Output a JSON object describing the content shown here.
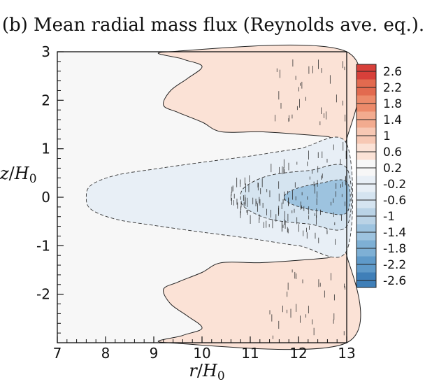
{
  "chart_data": {
    "type": "heatmap",
    "title": "(b) Mean radial mass flux (Reynolds ave. eq.).",
    "xlabel": {
      "var": "r",
      "slash": "/",
      "base": "H",
      "sub": "0"
    },
    "ylabel": {
      "var": "z",
      "slash": "/",
      "base": "H",
      "sub": "0"
    },
    "xlim": [
      7,
      13
    ],
    "ylim": [
      -3,
      3
    ],
    "x_ticks": [
      7,
      8,
      9,
      10,
      11,
      12,
      13
    ],
    "x_tick_labels": [
      "7",
      "8",
      "9",
      "10",
      "11",
      "12",
      "13"
    ],
    "y_ticks": [
      3,
      2,
      1,
      0,
      -1,
      -2
    ],
    "y_tick_labels": [
      "3",
      "2",
      "1",
      "0",
      "-1",
      "-2"
    ],
    "colorbar": {
      "levels": [
        2.6,
        2.2,
        1.8,
        1.4,
        1,
        0.6,
        0.2,
        -0.2,
        -0.6,
        -1,
        -1.4,
        -1.8,
        -2.2,
        -2.6
      ],
      "labels": [
        "2.6",
        "2.2",
        "1.8",
        "1.4",
        "1",
        "0.6",
        "0.2",
        "-0.2",
        "-0.6",
        "-1",
        "-1.4",
        "-1.8",
        "-2.2",
        "-2.6"
      ],
      "colors": [
        "#d7403a",
        "#e26a4f",
        "#ec8a6a",
        "#f2ab8f",
        "#f7c8b4",
        "#fbe2d6",
        "#f7f7f7",
        "#e8eff6",
        "#d5e4f0",
        "#bad3e6",
        "#9dc3df",
        "#7eb0d5",
        "#5f9ac9",
        "#3f7fb8"
      ]
    },
    "regions": [
      {
        "name": "background-near-zero",
        "level": 0.0,
        "color": "#f7f7f7"
      },
      {
        "name": "upper-positive-band",
        "level": 0.6,
        "color": "#fbe2d6",
        "z_range": [
          1.3,
          3.0
        ],
        "r_range": [
          9.2,
          13
        ]
      },
      {
        "name": "lower-positive-band",
        "level": 0.6,
        "color": "#fbe2d6",
        "z_range": [
          -3.0,
          -1.3
        ],
        "r_range": [
          9.2,
          13
        ]
      },
      {
        "name": "central-negative-wedge",
        "level": -0.4,
        "color": "#e8eff6",
        "z_range": [
          -1.1,
          1.1
        ],
        "r_range": [
          7.6,
          13
        ]
      },
      {
        "name": "inner-negative-core",
        "level": -0.8,
        "color": "#d5e4f0",
        "z_range": [
          -0.6,
          0.6
        ],
        "r_range": [
          10.8,
          13
        ]
      },
      {
        "name": "strong-negative-core",
        "level": -1.6,
        "color": "#9dc3df",
        "z_range": [
          -0.3,
          0.3
        ],
        "r_range": [
          11.6,
          13
        ]
      }
    ]
  }
}
